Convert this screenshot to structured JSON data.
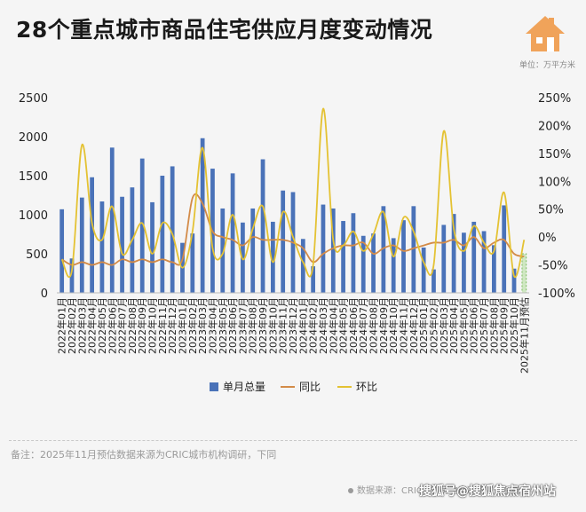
{
  "header": {
    "title": "28个重点城市商品住宅供应月度变动情况",
    "unit": "单位：万平方米",
    "logo_icon": "house-icon",
    "brand_color": "#f0a35a"
  },
  "footer": {
    "note": "备注：2025年11月预估数据来源为CRIC城市机构调研，下同",
    "source": "数据来源：CRIC中国房地产决策咨询系统",
    "watermark": "搜狐号@搜狐焦点宿州站"
  },
  "chart_data": {
    "type": "bar",
    "categories": [
      "2022年01月",
      "2022年02月",
      "2022年03月",
      "2022年04月",
      "2022年05月",
      "2022年06月",
      "2022年07月",
      "2022年08月",
      "2022年09月",
      "2022年10月",
      "2022年11月",
      "2022年12月",
      "2023年01月",
      "2023年02月",
      "2023年03月",
      "2023年04月",
      "2023年05月",
      "2023年06月",
      "2023年07月",
      "2023年08月",
      "2023年09月",
      "2023年10月",
      "2023年11月",
      "2023年12月",
      "2024年01月",
      "2024年02月",
      "2024年03月",
      "2024年04月",
      "2024年05月",
      "2024年06月",
      "2024年07月",
      "2024年08月",
      "2024年09月",
      "2024年10月",
      "2024年11月",
      "2024年12月",
      "2025年01月",
      "2025年02月",
      "2025年03月",
      "2025年04月",
      "2025年05月",
      "2025年06月",
      "2025年07月",
      "2025年08月",
      "2025年09月",
      "2025年10月",
      "2025年11月预估"
    ],
    "series": [
      {
        "name": "单月总量",
        "type": "bar",
        "axis": "left",
        "color": "#4a72b8",
        "values": [
          1070,
          440,
          1220,
          1480,
          1170,
          1860,
          1230,
          1350,
          1720,
          1160,
          1500,
          1620,
          640,
          760,
          1980,
          1590,
          1080,
          1530,
          900,
          1080,
          1710,
          910,
          1310,
          1290,
          690,
          340,
          1130,
          1080,
          920,
          1020,
          730,
          760,
          1110,
          700,
          930,
          1110,
          580,
          300,
          870,
          1010,
          770,
          910,
          790,
          610,
          1120,
          310,
          500
        ]
      },
      {
        "name": "同比",
        "type": "line",
        "axis": "right",
        "color": "#d38b48",
        "values": [
          -40,
          -50,
          -45,
          -50,
          -45,
          -50,
          -40,
          -45,
          -40,
          -45,
          -40,
          -45,
          -40,
          70,
          60,
          10,
          0,
          -5,
          -15,
          0,
          -5,
          -5,
          -5,
          -10,
          -20,
          -45,
          -30,
          -20,
          -15,
          -15,
          -10,
          -30,
          -20,
          -15,
          -25,
          -20,
          -15,
          -10,
          -10,
          -5,
          -15,
          0,
          -20,
          -10,
          -5,
          -30,
          -35
        ]
      },
      {
        "name": "环比",
        "type": "line",
        "axis": "right",
        "color": "#e4c233",
        "values": [
          -40,
          -60,
          165,
          25,
          -5,
          55,
          -30,
          -5,
          25,
          -30,
          25,
          5,
          -55,
          10,
          160,
          -20,
          -30,
          40,
          -40,
          15,
          55,
          -45,
          45,
          0,
          -45,
          -50,
          230,
          -5,
          -15,
          10,
          -25,
          5,
          45,
          -35,
          35,
          10,
          -45,
          -50,
          190,
          15,
          -25,
          20,
          -10,
          -25,
          80,
          -70,
          -5
        ]
      }
    ],
    "ylim_left": [
      0,
      2500
    ],
    "yticks_left": [
      "0",
      "500",
      "1000",
      "1500",
      "2000",
      "2500"
    ],
    "ylim_right": [
      -100,
      250
    ],
    "yticks_right": [
      "-100%",
      "-50%",
      "0%",
      "50%",
      "100%",
      "150%",
      "200%",
      "250%"
    ],
    "legend": [
      "单月总量",
      "同比",
      "环比"
    ],
    "legend_position": "bottom",
    "grid": false
  }
}
